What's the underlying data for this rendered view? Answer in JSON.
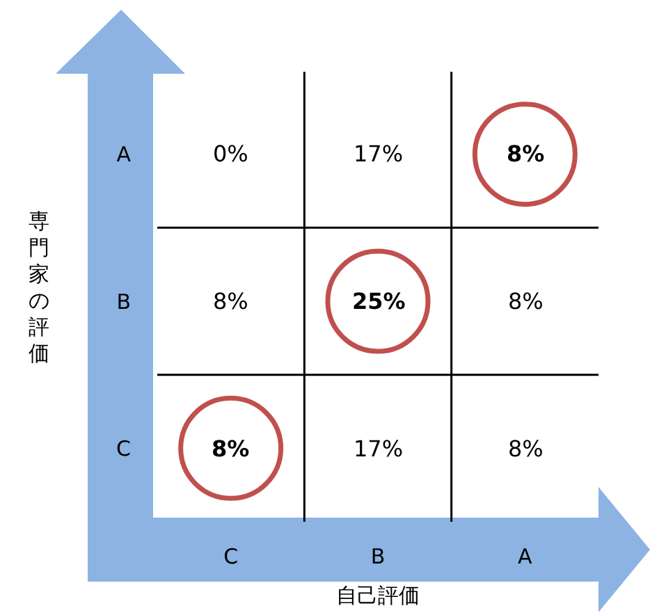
{
  "chart_data": {
    "type": "heatmap",
    "xlabel": "自己評価",
    "ylabel": "専門家の評価",
    "categories": [
      "C",
      "B",
      "A"
    ],
    "y_categories": [
      "A",
      "B",
      "C"
    ],
    "cells": [
      [
        0,
        17,
        8
      ],
      [
        8,
        25,
        8
      ],
      [
        8,
        17,
        8
      ]
    ],
    "cell_labels": [
      [
        "0%",
        "17%",
        "8%"
      ],
      [
        "8%",
        "25%",
        "8%"
      ],
      [
        "8%",
        "17%",
        "8%"
      ]
    ]
  }
}
